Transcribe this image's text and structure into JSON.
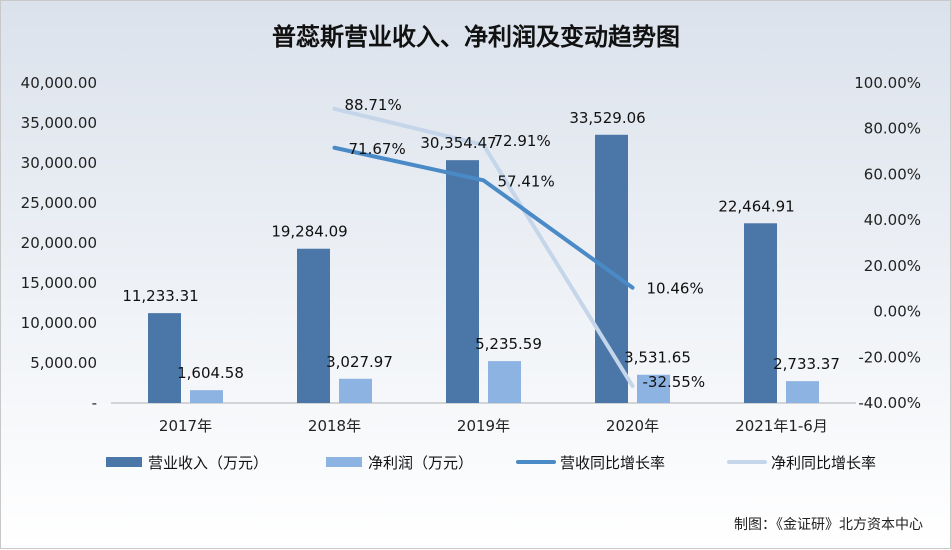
{
  "chart_data": {
    "type": "bar",
    "title": "普蕊斯营业收入、净利润及变动趋势图",
    "categories": [
      "2017年",
      "2018年",
      "2019年",
      "2020年",
      "2021年1-6月"
    ],
    "y_left": {
      "ylim": [
        0,
        40000
      ],
      "ticks": [
        "-",
        "5,000.00",
        "10,000.00",
        "15,000.00",
        "20,000.00",
        "25,000.00",
        "30,000.00",
        "35,000.00",
        "40,000.00"
      ]
    },
    "y_right": {
      "ylim": [
        -40,
        100
      ],
      "ticks": [
        "-40.00%",
        "-20.00%",
        "0.00%",
        "20.00%",
        "40.00%",
        "60.00%",
        "80.00%",
        "100.00%"
      ]
    },
    "series": [
      {
        "name": "营业收入（万元）",
        "kind": "bar",
        "axis": "left",
        "color": "#4a76a8",
        "values": [
          11233.31,
          19284.09,
          30354.47,
          33529.06,
          22464.91
        ],
        "labels": [
          "11,233.31",
          "19,284.09",
          "30,354.47",
          "33,529.06",
          "22,464.91"
        ]
      },
      {
        "name": "净利润（万元）",
        "kind": "bar",
        "axis": "left",
        "color": "#8db3e2",
        "values": [
          1604.58,
          3027.97,
          5235.59,
          3531.65,
          2733.37
        ],
        "labels": [
          "1,604.58",
          "3,027.97",
          "5,235.59",
          "3,531.65",
          "2,733.37"
        ]
      },
      {
        "name": "营收同比增长率",
        "kind": "line",
        "axis": "right",
        "color": "#4a8ac6",
        "values": [
          null,
          71.67,
          57.41,
          10.46,
          null
        ],
        "labels": [
          "",
          "71.67%",
          "57.41%",
          "10.46%",
          ""
        ]
      },
      {
        "name": "净利同比增长率",
        "kind": "line",
        "axis": "right",
        "color": "#c5d5ea",
        "values": [
          null,
          88.71,
          72.91,
          -32.55,
          null
        ],
        "labels": [
          "",
          "88.71%",
          "72.91%",
          "-32.55%",
          ""
        ]
      }
    ],
    "legend_position": "bottom",
    "grid": false
  },
  "footer": {
    "credit": "制图：《金证研》北方资本中心"
  }
}
